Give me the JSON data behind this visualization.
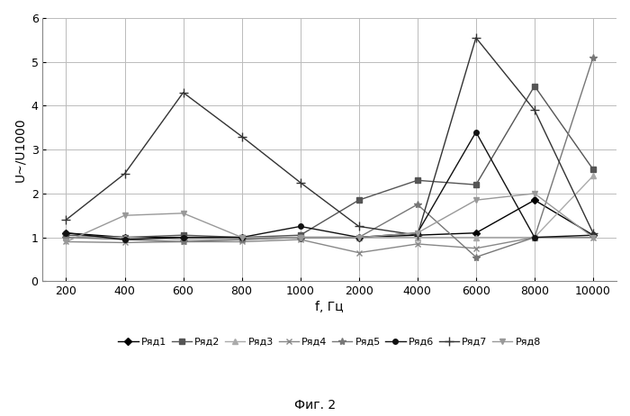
{
  "x_labels": [
    "200",
    "400",
    "600",
    "800",
    "1000",
    "2000",
    "4000",
    "6000",
    "8000",
    "10000"
  ],
  "x_positions": [
    0,
    1,
    2,
    3,
    4,
    5,
    6,
    7,
    8,
    9
  ],
  "series": [
    {
      "name": "Ряд1",
      "values": [
        1.1,
        1.0,
        1.0,
        1.0,
        1.0,
        1.0,
        1.05,
        1.1,
        1.85,
        1.05
      ],
      "color": "#000000",
      "marker": "D",
      "markersize": 4,
      "linewidth": 1.0
    },
    {
      "name": "Ряд2",
      "values": [
        1.05,
        1.0,
        1.05,
        1.0,
        1.05,
        1.85,
        2.3,
        2.2,
        4.45,
        2.55
      ],
      "color": "#555555",
      "marker": "s",
      "markersize": 4,
      "linewidth": 1.0
    },
    {
      "name": "Ряд3",
      "values": [
        1.0,
        1.0,
        0.95,
        0.95,
        1.0,
        1.0,
        1.0,
        1.0,
        1.0,
        2.4
      ],
      "color": "#aaaaaa",
      "marker": "^",
      "markersize": 4,
      "linewidth": 1.0
    },
    {
      "name": "Ряд4",
      "values": [
        0.9,
        0.88,
        0.9,
        0.9,
        0.95,
        0.65,
        0.85,
        0.75,
        1.0,
        1.0
      ],
      "color": "#888888",
      "marker": "x",
      "markersize": 5,
      "linewidth": 1.0
    },
    {
      "name": "Ряд5",
      "values": [
        1.0,
        0.95,
        0.9,
        0.95,
        1.0,
        1.0,
        1.75,
        0.55,
        1.0,
        5.1
      ],
      "color": "#777777",
      "marker": "*",
      "markersize": 6,
      "linewidth": 1.0
    },
    {
      "name": "Ряд6",
      "values": [
        1.1,
        0.95,
        1.0,
        1.0,
        1.25,
        1.0,
        1.1,
        3.4,
        1.0,
        1.05
      ],
      "color": "#111111",
      "marker": "o",
      "markersize": 4,
      "linewidth": 1.0
    },
    {
      "name": "Ряд7",
      "values": [
        1.4,
        2.45,
        4.3,
        3.3,
        2.25,
        1.25,
        1.05,
        5.55,
        3.9,
        1.1
      ],
      "color": "#333333",
      "marker": "+",
      "markersize": 7,
      "linewidth": 1.0
    },
    {
      "name": "Ряд8",
      "values": [
        0.9,
        1.5,
        1.55,
        1.0,
        1.0,
        1.0,
        1.1,
        1.85,
        2.0,
        1.0
      ],
      "color": "#999999",
      "marker": "v",
      "markersize": 4,
      "linewidth": 1.0
    }
  ],
  "ylabel": "U~/U1000",
  "xlabel": "f, Гц",
  "ylim": [
    0,
    6
  ],
  "yticks": [
    0,
    1,
    2,
    3,
    4,
    5,
    6
  ],
  "caption": "Фиг. 2",
  "background_color": "#ffffff",
  "grid_color": "#bbbbbb"
}
